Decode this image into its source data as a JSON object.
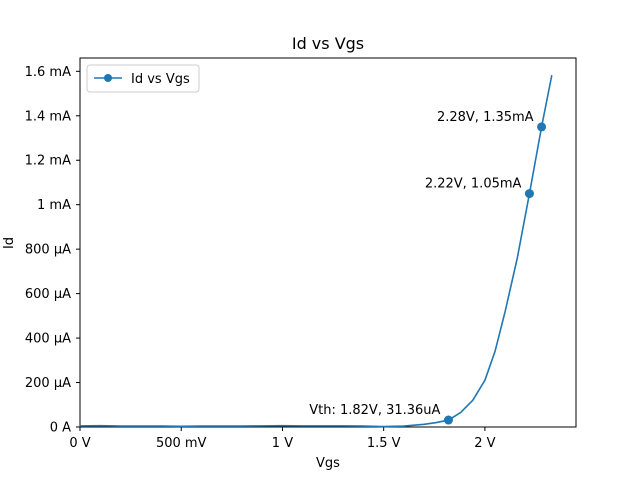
{
  "chart_data": {
    "type": "line",
    "title": "Id vs Vgs",
    "xlabel": "Vgs",
    "ylabel": "Id",
    "xlim": [
      0,
      2.45
    ],
    "ylim": [
      -8e-05,
      1.66
    ],
    "x_ticks": [
      {
        "value": 0,
        "label": "0 V"
      },
      {
        "value": 0.5,
        "label": "500 mV"
      },
      {
        "value": 1.0,
        "label": "1 V"
      },
      {
        "value": 1.5,
        "label": "1.5 V"
      },
      {
        "value": 2.0,
        "label": "2 V"
      }
    ],
    "y_ticks": [
      {
        "value": 0,
        "label": "0 A"
      },
      {
        "value": 0.2,
        "label": "200 µA"
      },
      {
        "value": 0.4,
        "label": "400 µA"
      },
      {
        "value": 0.6,
        "label": "600 µA"
      },
      {
        "value": 0.8,
        "label": "800 µA"
      },
      {
        "value": 1.0,
        "label": "1 mA"
      },
      {
        "value": 1.2,
        "label": "1.2 mA"
      },
      {
        "value": 1.4,
        "label": "1.4 mA"
      },
      {
        "value": 1.6,
        "label": "1.6 mA"
      }
    ],
    "y_units": "mA",
    "grid": false,
    "legend_position": "top-left",
    "series": [
      {
        "name": "Id vs Vgs",
        "color": "#1f77b4",
        "x": [
          0,
          0.1,
          0.2,
          0.3,
          0.4,
          0.5,
          0.6,
          0.7,
          0.8,
          0.9,
          1.0,
          1.1,
          1.2,
          1.3,
          1.4,
          1.5,
          1.6,
          1.7,
          1.76,
          1.82,
          1.88,
          1.94,
          2.0,
          2.05,
          2.1,
          2.16,
          2.22,
          2.28,
          2.33
        ],
        "y": [
          0.005,
          0.006,
          0.004,
          0.004,
          0.004,
          0.003,
          0.004,
          0.004,
          0.004,
          0.005,
          0.006,
          0.005,
          0.005,
          0.005,
          0.004,
          0.002,
          0.004,
          0.012,
          0.02,
          0.031,
          0.065,
          0.12,
          0.21,
          0.34,
          0.52,
          0.76,
          1.05,
          1.35,
          1.58
        ]
      }
    ],
    "markers": [
      {
        "x": 1.82,
        "y": 0.03136,
        "label": "Vth: 1.82V, 31.36uA"
      },
      {
        "x": 2.22,
        "y": 1.05,
        "label": "2.22V, 1.05mA"
      },
      {
        "x": 2.28,
        "y": 1.35,
        "label": "2.28V, 1.35mA"
      }
    ]
  }
}
